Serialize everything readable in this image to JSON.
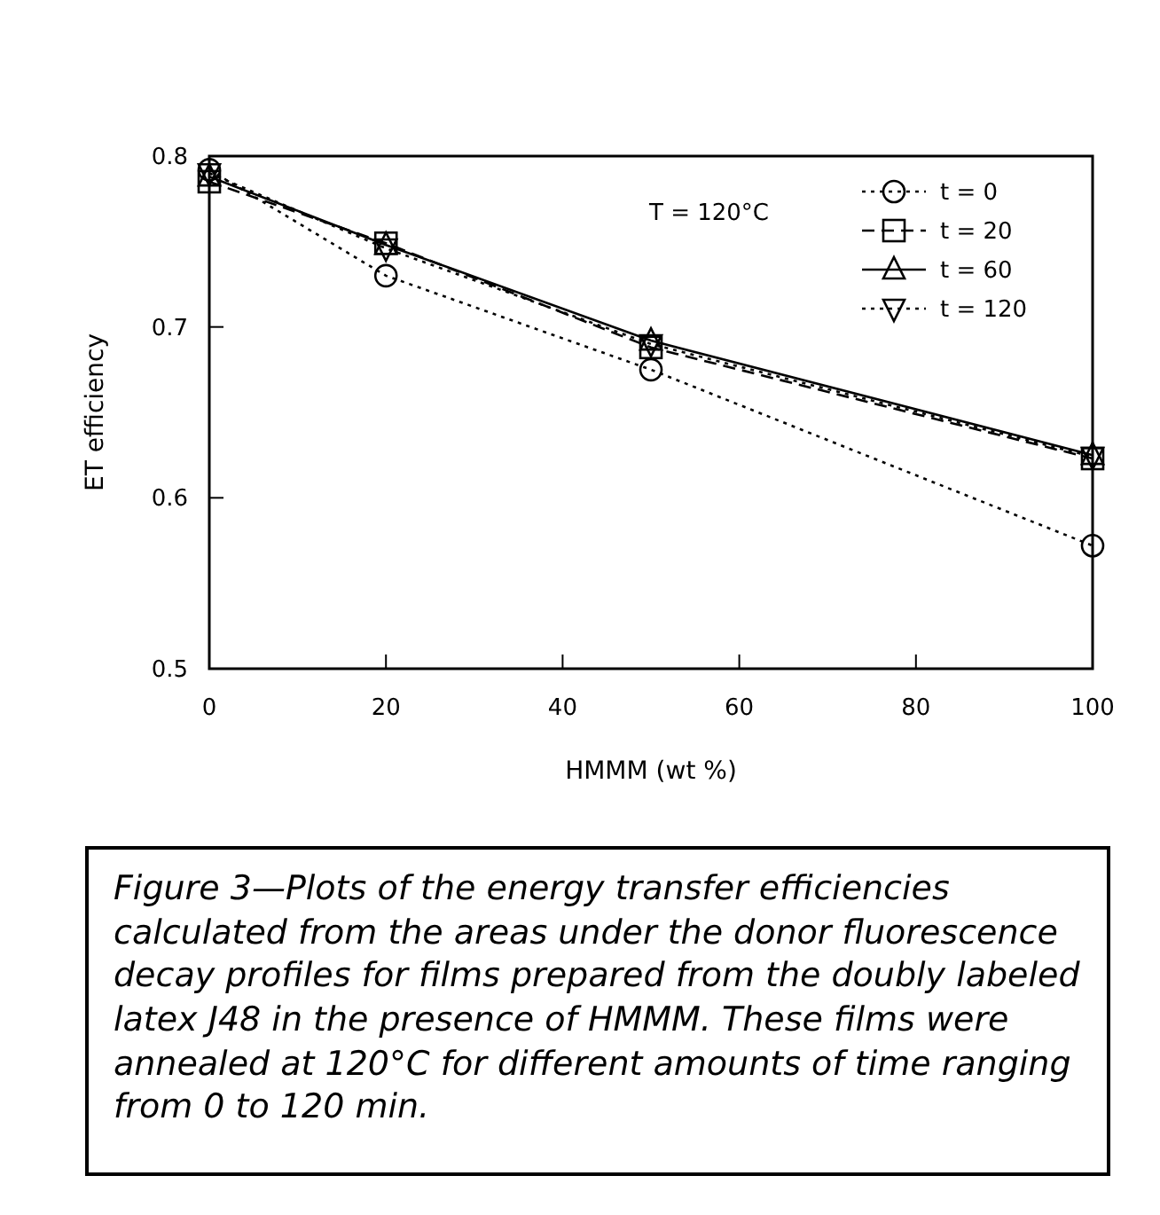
{
  "chart_data": {
    "type": "line",
    "xlabel": "HMMM (wt %)",
    "ylabel": "ET efficiency",
    "x": [
      0,
      20,
      50,
      100
    ],
    "xlim": [
      0,
      100
    ],
    "xticks": [
      0,
      20,
      40,
      60,
      80,
      100
    ],
    "ylim": [
      0.5,
      0.8
    ],
    "yticks": [
      {
        "value": 0.5,
        "label": "0.5"
      },
      {
        "value": 0.6,
        "label": "0.6"
      },
      {
        "value": 0.7,
        "label": "0.7"
      },
      {
        "value": 0.8,
        "label": "0.8"
      }
    ],
    "legend": "top right",
    "grid": false,
    "series": [
      {
        "name": "t = 0",
        "color": "#000000",
        "marker": "circle",
        "line_style": "dotted",
        "values": [
          0.792,
          0.73,
          0.675,
          0.572
        ]
      },
      {
        "name": "t = 20",
        "color": "#000000",
        "marker": "square",
        "line_style": "dashed",
        "values": [
          0.785,
          0.749,
          0.688,
          0.623
        ]
      },
      {
        "name": "t = 60",
        "color": "#000000",
        "marker": "triangle",
        "line_style": "solid",
        "values": [
          0.788,
          0.748,
          0.692,
          0.625
        ]
      },
      {
        "name": "t = 120",
        "color": "#000000",
        "marker": "triangle-down",
        "line_style": "dotted",
        "values": [
          0.79,
          0.746,
          0.69,
          0.624
        ]
      }
    ],
    "annotations": [
      "T = 120°C",
      "Figure 3—Plots of the energy transfer efficiencies calculated from the areas under the donor fluorescence decay profiles for films prepared from the doubly labeled latex J48 in the presence of HMMM. These films were annealed at 120°C for different amounts of time ranging from 0 to 120 min."
    ]
  }
}
